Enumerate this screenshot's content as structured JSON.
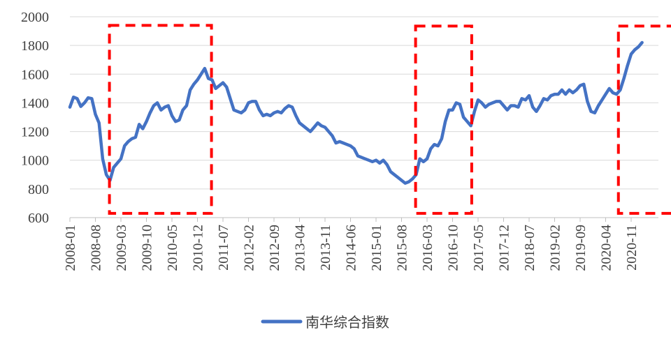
{
  "chart_data": {
    "type": "line",
    "title": "",
    "xlabel": "",
    "ylabel": "",
    "ylim": [
      600,
      2000
    ],
    "yticks": [
      600,
      800,
      1000,
      1200,
      1400,
      1600,
      1800,
      2000
    ],
    "grid": true,
    "legend_position": "bottom",
    "x_tick_labels": [
      "2008-01",
      "2008-08",
      "2009-03",
      "2009-10",
      "2010-05",
      "2010-12",
      "2011-07",
      "2012-02",
      "2012-09",
      "2013-04",
      "2013-11",
      "2014-06",
      "2015-01",
      "2015-08",
      "2016-03",
      "2016-10",
      "2017-05",
      "2017-12",
      "2018-07",
      "2019-02",
      "2019-09",
      "2020-04",
      "2020-11"
    ],
    "x_start": "2008-01",
    "series": [
      {
        "name": "南华综合指数",
        "color": "#4472C4",
        "values": [
          1370,
          1440,
          1430,
          1375,
          1400,
          1435,
          1430,
          1320,
          1260,
          1010,
          900,
          860,
          950,
          980,
          1010,
          1100,
          1130,
          1150,
          1160,
          1250,
          1220,
          1270,
          1330,
          1380,
          1400,
          1350,
          1370,
          1380,
          1310,
          1270,
          1280,
          1350,
          1380,
          1490,
          1530,
          1560,
          1600,
          1640,
          1570,
          1560,
          1500,
          1520,
          1540,
          1510,
          1430,
          1350,
          1340,
          1330,
          1350,
          1400,
          1410,
          1410,
          1350,
          1310,
          1320,
          1310,
          1330,
          1340,
          1330,
          1360,
          1380,
          1370,
          1310,
          1260,
          1240,
          1220,
          1200,
          1230,
          1260,
          1240,
          1230,
          1200,
          1170,
          1120,
          1130,
          1120,
          1110,
          1100,
          1080,
          1030,
          1020,
          1010,
          1000,
          990,
          1000,
          980,
          1000,
          970,
          920,
          900,
          880,
          860,
          840,
          850,
          870,
          900,
          1010,
          990,
          1010,
          1080,
          1110,
          1100,
          1150,
          1270,
          1350,
          1350,
          1400,
          1390,
          1300,
          1270,
          1240,
          1340,
          1420,
          1400,
          1370,
          1390,
          1400,
          1410,
          1410,
          1380,
          1350,
          1380,
          1380,
          1370,
          1430,
          1420,
          1450,
          1370,
          1340,
          1380,
          1430,
          1420,
          1450,
          1460,
          1460,
          1490,
          1460,
          1490,
          1470,
          1490,
          1520,
          1530,
          1410,
          1340,
          1330,
          1380,
          1420,
          1460,
          1500,
          1470,
          1460,
          1490,
          1570,
          1660,
          1740,
          1770,
          1790,
          1820
        ]
      }
    ],
    "highlight_ranges": [
      {
        "x_start": 1.55,
        "x_end": 5.55,
        "y_low": 630,
        "y_high": 1940
      },
      {
        "x_start": 13.55,
        "x_end": 15.75,
        "y_low": 630,
        "y_high": 1935
      },
      {
        "x_start": 21.5,
        "x_end": 23.9,
        "y_low": 630,
        "y_high": 1935
      }
    ]
  }
}
